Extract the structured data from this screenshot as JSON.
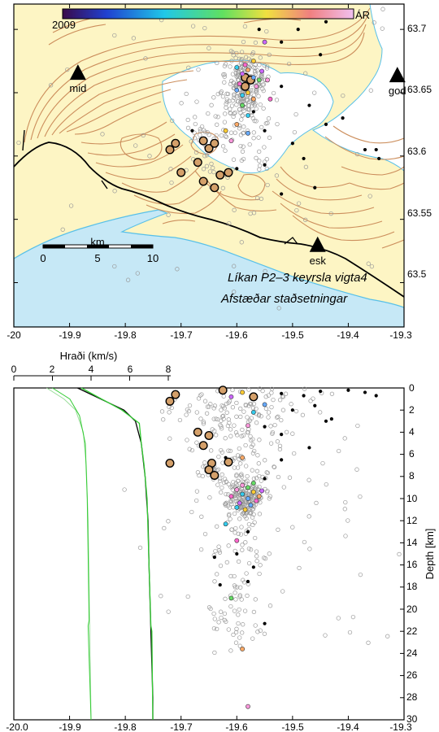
{
  "colorbar": {
    "start_label": "2009",
    "end_label": "ÁR"
  },
  "annotations": {
    "model": "Líkan P2–3 keyrsla vigta4",
    "relative": "Afstæðar staðsetningar"
  },
  "stations": [
    {
      "name": "mid",
      "lon": -19.885,
      "lat": 63.666
    },
    {
      "name": "god",
      "lon": -19.312,
      "lat": 63.664
    },
    {
      "name": "esk",
      "lon": -19.455,
      "lat": 63.53
    }
  ],
  "scalebar": {
    "title": "km",
    "labels": [
      "0",
      "5",
      "10"
    ]
  },
  "map_axes": {
    "lon_ticks": [
      "-20",
      "-19.9",
      "-19.8",
      "-19.7",
      "-19.6",
      "-19.5",
      "-19.4",
      "-19.3"
    ],
    "lat_ticks": [
      "63.7",
      "63.65",
      "63.6",
      "63.55",
      "63.5"
    ]
  },
  "velocity_axis": {
    "label": "Hraði (km/s)",
    "ticks": [
      "0",
      "2",
      "4",
      "6",
      "8"
    ]
  },
  "depth_axis": {
    "label": "Depth [km]",
    "ticks": [
      "0",
      "2",
      "4",
      "6",
      "8",
      "10",
      "12",
      "14",
      "16",
      "18",
      "20",
      "22",
      "24",
      "26",
      "28",
      "30"
    ]
  },
  "section_axis": {
    "lon_ticks": [
      "-20.0",
      "-19.9",
      "-19.8",
      "-19.7",
      "-19.6",
      "-19.5",
      "-19.4",
      "-19.3"
    ]
  },
  "colors": {
    "land": "#fdf5c4",
    "sea": "#c6e8f6",
    "glacier": "#ffffff",
    "contour": "#cc8e5c",
    "coast": "#58c0e8",
    "road": "#000000",
    "vp1": "#000000",
    "vp2": "#33cc33",
    "vs": "#99dd99",
    "small_eq": "#999999"
  },
  "chart_data": [
    {
      "type": "scatter",
      "xlabel": "",
      "ylabel": "",
      "xlim": [
        -20.0,
        -19.3
      ],
      "ylim": [
        63.465,
        63.72
      ],
      "events": [
        {
          "lon": -19.72,
          "lat": 63.605,
          "size": "large"
        },
        {
          "lon": -19.71,
          "lat": 63.61,
          "size": "large"
        },
        {
          "lon": -19.66,
          "lat": 63.612,
          "size": "large"
        },
        {
          "lon": -19.65,
          "lat": 63.606,
          "size": "large"
        },
        {
          "lon": -19.64,
          "lat": 63.61,
          "size": "large"
        },
        {
          "lon": -19.67,
          "lat": 63.595,
          "size": "large"
        },
        {
          "lon": -19.63,
          "lat": 63.585,
          "size": "large"
        },
        {
          "lon": -19.615,
          "lat": 63.587,
          "size": "large"
        },
        {
          "lon": -19.66,
          "lat": 63.58,
          "size": "large"
        },
        {
          "lon": -19.7,
          "lat": 63.587,
          "size": "large"
        },
        {
          "lon": -19.64,
          "lat": 63.575,
          "size": "large"
        },
        {
          "lon": -19.585,
          "lat": 63.655,
          "size": "large"
        },
        {
          "lon": -19.585,
          "lat": 63.662,
          "size": "large"
        },
        {
          "lon": -19.575,
          "lat": 63.66,
          "size": "large"
        },
        {
          "lon": -19.56,
          "lat": 63.7,
          "size": "black"
        },
        {
          "lon": -19.52,
          "lat": 63.69,
          "size": "black"
        },
        {
          "lon": -19.49,
          "lat": 63.7,
          "size": "black"
        },
        {
          "lon": -19.44,
          "lat": 63.706,
          "size": "black"
        },
        {
          "lon": -19.4,
          "lat": 63.715,
          "size": "black"
        },
        {
          "lon": -19.45,
          "lat": 63.68,
          "size": "black"
        },
        {
          "lon": -19.52,
          "lat": 63.655,
          "size": "black"
        },
        {
          "lon": -19.47,
          "lat": 63.64,
          "size": "black"
        },
        {
          "lon": -19.44,
          "lat": 63.625,
          "size": "black"
        },
        {
          "lon": -19.41,
          "lat": 63.63,
          "size": "black"
        },
        {
          "lon": -19.5,
          "lat": 63.61,
          "size": "black"
        },
        {
          "lon": -19.48,
          "lat": 63.598,
          "size": "black"
        },
        {
          "lon": -19.37,
          "lat": 63.605,
          "size": "black"
        },
        {
          "lon": -19.35,
          "lat": 63.605,
          "size": "black"
        },
        {
          "lon": -19.345,
          "lat": 63.598,
          "size": "black"
        },
        {
          "lon": -19.55,
          "lat": 63.593,
          "size": "black"
        },
        {
          "lon": -19.52,
          "lat": 63.57,
          "size": "black"
        },
        {
          "lon": -19.46,
          "lat": 63.575,
          "size": "black"
        },
        {
          "lon": -19.6,
          "lat": 63.59,
          "size": "black"
        },
        {
          "lon": -19.57,
          "lat": 63.635,
          "size": "black"
        },
        {
          "lon": -19.55,
          "lat": 63.62,
          "size": "black"
        },
        {
          "lon": -19.68,
          "lat": 63.62,
          "size": "black"
        },
        {
          "lon": -19.6,
          "lat": 63.67,
          "size": "color"
        },
        {
          "lon": -19.59,
          "lat": 63.665,
          "size": "color"
        },
        {
          "lon": -19.58,
          "lat": 63.668,
          "size": "color"
        },
        {
          "lon": -19.57,
          "lat": 63.662,
          "size": "color"
        },
        {
          "lon": -19.595,
          "lat": 63.657,
          "size": "color"
        },
        {
          "lon": -19.565,
          "lat": 63.655,
          "size": "color"
        },
        {
          "lon": -19.58,
          "lat": 63.65,
          "size": "color"
        },
        {
          "lon": -19.56,
          "lat": 63.66,
          "size": "color"
        },
        {
          "lon": -19.59,
          "lat": 63.648,
          "size": "color"
        },
        {
          "lon": -19.555,
          "lat": 63.667,
          "size": "color"
        },
        {
          "lon": -19.57,
          "lat": 63.645,
          "size": "color"
        },
        {
          "lon": -19.6,
          "lat": 63.652,
          "size": "color"
        },
        {
          "lon": -19.585,
          "lat": 63.672,
          "size": "color"
        },
        {
          "lon": -19.545,
          "lat": 63.66,
          "size": "color"
        },
        {
          "lon": -19.57,
          "lat": 63.675,
          "size": "color"
        },
        {
          "lon": -19.59,
          "lat": 63.64,
          "size": "color"
        },
        {
          "lon": -19.58,
          "lat": 63.632,
          "size": "color"
        },
        {
          "lon": -19.55,
          "lat": 63.69,
          "size": "color"
        },
        {
          "lon": -19.6,
          "lat": 63.625,
          "size": "color"
        },
        {
          "lon": -19.58,
          "lat": 63.618,
          "size": "color"
        },
        {
          "lon": -19.54,
          "lat": 63.645,
          "size": "color"
        },
        {
          "lon": -19.61,
          "lat": 63.612,
          "size": "color"
        },
        {
          "lon": -19.62,
          "lat": 63.62,
          "size": "color"
        }
      ]
    },
    {
      "type": "line",
      "xlabel": "Hraði (km/s)",
      "ylabel": "Depth [km]",
      "xlim": [
        0,
        8
      ],
      "ylim": [
        0,
        30
      ],
      "series": [
        {
          "values": [
            [
              3.3,
              0
            ],
            [
              4.5,
              1
            ],
            [
              5.7,
              2
            ],
            [
              6.3,
              3
            ],
            [
              6.6,
              5
            ],
            [
              6.8,
              8
            ],
            [
              6.95,
              12
            ],
            [
              7.0,
              16
            ],
            [
              7.1,
              22
            ],
            [
              7.2,
              28
            ],
            [
              7.2,
              30
            ]
          ]
        },
        {
          "values": [
            [
              3.5,
              0
            ],
            [
              5.6,
              2
            ],
            [
              6.5,
              3.2
            ],
            [
              6.6,
              5
            ],
            [
              6.75,
              7
            ],
            [
              6.9,
              10
            ],
            [
              7.0,
              16
            ],
            [
              7.1,
              21.5
            ],
            [
              7.15,
              22
            ],
            [
              7.2,
              30
            ]
          ]
        },
        {
          "values": [
            [
              1.7,
              0
            ],
            [
              2.6,
              1
            ],
            [
              3.2,
              2
            ],
            [
              3.6,
              4
            ],
            [
              3.75,
              7
            ],
            [
              3.85,
              12
            ],
            [
              3.9,
              18
            ],
            [
              3.95,
              24
            ],
            [
              4.0,
              30
            ]
          ]
        },
        {
          "values": [
            [
              2.0,
              0
            ],
            [
              2.9,
              1
            ],
            [
              3.4,
              2.5
            ],
            [
              3.7,
              5
            ],
            [
              3.8,
              10
            ],
            [
              3.85,
              15
            ],
            [
              3.9,
              21
            ],
            [
              3.85,
              21.5
            ],
            [
              4.0,
              30
            ]
          ]
        }
      ]
    },
    {
      "type": "scatter",
      "xlabel": "",
      "ylabel": "Depth [km]",
      "xlim": [
        -20.0,
        -19.3
      ],
      "ylim": [
        30,
        0
      ],
      "events": [
        {
          "lon": -19.72,
          "depth": 1.2,
          "size": "large"
        },
        {
          "lon": -19.71,
          "depth": 0.6,
          "size": "large"
        },
        {
          "lon": -19.67,
          "depth": 4.0,
          "size": "large"
        },
        {
          "lon": -19.65,
          "depth": 4.3,
          "size": "large"
        },
        {
          "lon": -19.66,
          "depth": 5.2,
          "size": "large"
        },
        {
          "lon": -19.645,
          "depth": 6.8,
          "size": "large"
        },
        {
          "lon": -19.65,
          "depth": 7.4,
          "size": "large"
        },
        {
          "lon": -19.64,
          "depth": 7.9,
          "size": "large"
        },
        {
          "lon": -19.72,
          "depth": 6.8,
          "size": "large"
        },
        {
          "lon": -19.615,
          "depth": 6.7,
          "size": "large"
        },
        {
          "lon": -19.625,
          "depth": 0.2,
          "size": "large"
        },
        {
          "lon": -19.57,
          "depth": 0.8,
          "size": "large"
        },
        {
          "lon": -19.52,
          "depth": 0.5,
          "size": "black"
        },
        {
          "lon": -19.48,
          "depth": 0.7,
          "size": "black"
        },
        {
          "lon": -19.45,
          "depth": 0.3,
          "size": "black"
        },
        {
          "lon": -19.4,
          "depth": 0.2,
          "size": "black"
        },
        {
          "lon": -19.37,
          "depth": 0.4,
          "size": "black"
        },
        {
          "lon": -19.35,
          "depth": 0.7,
          "size": "black"
        },
        {
          "lon": -19.5,
          "depth": 2.0,
          "size": "black"
        },
        {
          "lon": -19.46,
          "depth": 1.6,
          "size": "black"
        },
        {
          "lon": -19.43,
          "depth": 2.8,
          "size": "black"
        },
        {
          "lon": -19.55,
          "depth": 3.5,
          "size": "black"
        },
        {
          "lon": -19.52,
          "depth": 4.2,
          "size": "black"
        },
        {
          "lon": -19.47,
          "depth": 5.4,
          "size": "black"
        },
        {
          "lon": -19.44,
          "depth": 3.0,
          "size": "black"
        },
        {
          "lon": -19.52,
          "depth": 6.5,
          "size": "black"
        },
        {
          "lon": -19.62,
          "depth": 6.3,
          "size": "black"
        },
        {
          "lon": -19.55,
          "depth": 8.2,
          "size": "black"
        },
        {
          "lon": -19.6,
          "depth": 15.0,
          "size": "black"
        },
        {
          "lon": -19.58,
          "depth": 13.0,
          "size": "black"
        },
        {
          "lon": -19.64,
          "depth": 15.3,
          "size": "black"
        },
        {
          "lon": -19.58,
          "depth": 17.5,
          "size": "black"
        },
        {
          "lon": -19.63,
          "depth": 17.8,
          "size": "black"
        },
        {
          "lon": -19.57,
          "depth": 16.2,
          "size": "black"
        },
        {
          "lon": -19.55,
          "depth": 21.3,
          "size": "black"
        },
        {
          "lon": -19.6,
          "depth": 9.2,
          "size": "color"
        },
        {
          "lon": -19.59,
          "depth": 9.6,
          "size": "color"
        },
        {
          "lon": -19.58,
          "depth": 10.0,
          "size": "color"
        },
        {
          "lon": -19.57,
          "depth": 9.4,
          "size": "color"
        },
        {
          "lon": -19.595,
          "depth": 10.4,
          "size": "color"
        },
        {
          "lon": -19.565,
          "depth": 10.2,
          "size": "color"
        },
        {
          "lon": -19.58,
          "depth": 9.0,
          "size": "color"
        },
        {
          "lon": -19.56,
          "depth": 9.8,
          "size": "color"
        },
        {
          "lon": -19.59,
          "depth": 8.8,
          "size": "color"
        },
        {
          "lon": -19.6,
          "depth": 10.8,
          "size": "color"
        },
        {
          "lon": -19.575,
          "depth": 10.6,
          "size": "color"
        },
        {
          "lon": -19.585,
          "depth": 11.0,
          "size": "color"
        },
        {
          "lon": -19.555,
          "depth": 9.3,
          "size": "color"
        },
        {
          "lon": -19.61,
          "depth": 9.8,
          "size": "color"
        },
        {
          "lon": -19.57,
          "depth": 8.6,
          "size": "color"
        },
        {
          "lon": -19.59,
          "depth": 6.3,
          "size": "color"
        },
        {
          "lon": -19.58,
          "depth": 3.4,
          "size": "color"
        },
        {
          "lon": -19.57,
          "depth": 2.2,
          "size": "color"
        },
        {
          "lon": -19.55,
          "depth": 1.5,
          "size": "color"
        },
        {
          "lon": -19.59,
          "depth": 0.4,
          "size": "color"
        },
        {
          "lon": -19.61,
          "depth": 0.8,
          "size": "color"
        },
        {
          "lon": -19.6,
          "depth": 13.8,
          "size": "color"
        },
        {
          "lon": -19.61,
          "depth": 19.0,
          "size": "color"
        },
        {
          "lon": -19.59,
          "depth": 23.6,
          "size": "color"
        },
        {
          "lon": -19.58,
          "depth": 28.8,
          "size": "color"
        },
        {
          "lon": -19.62,
          "depth": 12.3,
          "size": "color"
        }
      ]
    }
  ]
}
